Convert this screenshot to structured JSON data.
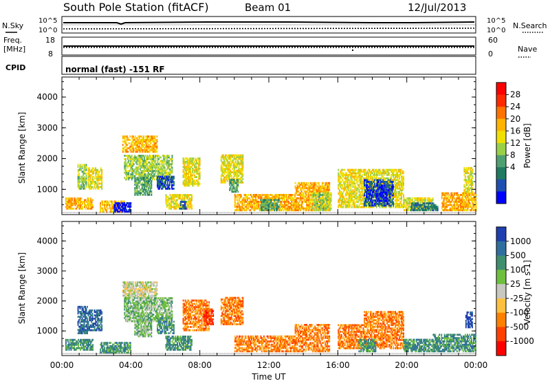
{
  "header": {
    "title": "South Pole Station (fitACF)",
    "beam": "Beam 01",
    "date": "12/Jul/2013"
  },
  "panels": {
    "nsky_label": "N.Sky",
    "nsky_ticks": [
      "10^5",
      "10^0"
    ],
    "nsearch_label": "N.Search",
    "nsearch_ticks": [
      "10^5",
      "10^0"
    ],
    "freq_label_1": "Freq.",
    "freq_label_2": "[MHz]",
    "freq_ticks": [
      "18",
      "8"
    ],
    "nave_label": "Nave",
    "nave_ticks": [
      "60",
      "0"
    ],
    "cpid_label": "CPID",
    "cpid_text": "normal (fast) -151 RF"
  },
  "chart_data": [
    {
      "type": "heatmap",
      "panel": "power",
      "ylabel": "Slant Range [km]",
      "xlabel": "",
      "x_ticks": [
        "00:00",
        "04:00",
        "08:00",
        "12:00",
        "16:00",
        "20:00",
        "00:00"
      ],
      "y_ticks": [
        1000,
        2000,
        3000,
        4000
      ],
      "xlim_hours": [
        0,
        24
      ],
      "ylim_km": [
        180,
        4650
      ],
      "colorbar_label": "Power [dB]",
      "colorbar_ticks": [
        28,
        24,
        20,
        16,
        12,
        8,
        4
      ],
      "colorbar_colors": [
        "#ff0000",
        "#ff2a00",
        "#ff7200",
        "#ffb400",
        "#f0e000",
        "#9ad048",
        "#4fa070",
        "#1f7a60",
        "#1f4fb0",
        "#0000ff"
      ],
      "patches": [
        {
          "t": [
            0.2,
            1.8
          ],
          "r": [
            350,
            700
          ],
          "level": 3
        },
        {
          "t": [
            0.9,
            1.4
          ],
          "r": [
            1000,
            1800
          ],
          "level": 5
        },
        {
          "t": [
            1.5,
            2.3
          ],
          "r": [
            1000,
            1700
          ],
          "level": 4
        },
        {
          "t": [
            2.2,
            3.6
          ],
          "r": [
            250,
            600
          ],
          "level": 3
        },
        {
          "t": [
            3.0,
            4.0
          ],
          "r": [
            250,
            550
          ],
          "level": 9
        },
        {
          "t": [
            3.5,
            5.5
          ],
          "r": [
            2200,
            2700
          ],
          "level": 3
        },
        {
          "t": [
            3.6,
            6.4
          ],
          "r": [
            1300,
            2100
          ],
          "level": 5
        },
        {
          "t": [
            4.2,
            5.2
          ],
          "r": [
            800,
            1400
          ],
          "level": 6
        },
        {
          "t": [
            5.5,
            6.5
          ],
          "r": [
            1000,
            1400
          ],
          "level": 8
        },
        {
          "t": [
            6.0,
            7.5
          ],
          "r": [
            350,
            800
          ],
          "level": 4
        },
        {
          "t": [
            6.8,
            7.2
          ],
          "r": [
            350,
            600
          ],
          "level": 8
        },
        {
          "t": [
            7.0,
            8.0
          ],
          "r": [
            1100,
            2000
          ],
          "level": 4
        },
        {
          "t": [
            9.2,
            10.5
          ],
          "r": [
            1200,
            2100
          ],
          "level": 4
        },
        {
          "t": [
            9.7,
            10.2
          ],
          "r": [
            900,
            1300
          ],
          "level": 6
        },
        {
          "t": [
            10.0,
            13.5
          ],
          "r": [
            300,
            800
          ],
          "level": 3
        },
        {
          "t": [
            11.5,
            12.6
          ],
          "r": [
            300,
            650
          ],
          "level": 6
        },
        {
          "t": [
            13.5,
            15.5
          ],
          "r": [
            300,
            1200
          ],
          "level": 3
        },
        {
          "t": [
            14.5,
            15.6
          ],
          "r": [
            300,
            900
          ],
          "level": 5
        },
        {
          "t": [
            16.0,
            19.8
          ],
          "r": [
            400,
            1650
          ],
          "level": 4
        },
        {
          "t": [
            17.5,
            19.2
          ],
          "r": [
            450,
            1300
          ],
          "level": 8
        },
        {
          "t": [
            18.2,
            18.8
          ],
          "r": [
            600,
            1100
          ],
          "level": 9
        },
        {
          "t": [
            19.8,
            21.5
          ],
          "r": [
            300,
            700
          ],
          "level": 4
        },
        {
          "t": [
            20.2,
            21.8
          ],
          "r": [
            300,
            550
          ],
          "level": 7
        },
        {
          "t": [
            22.0,
            24.0
          ],
          "r": [
            300,
            900
          ],
          "level": 3
        },
        {
          "t": [
            23.3,
            23.8
          ],
          "r": [
            900,
            1700
          ],
          "level": 4
        }
      ]
    },
    {
      "type": "heatmap",
      "panel": "velocity",
      "ylabel": "Slant Range [km]",
      "xlabel": "Time UT",
      "x_ticks": [
        "00:00",
        "04:00",
        "08:00",
        "12:00",
        "16:00",
        "20:00",
        "00:00"
      ],
      "y_ticks": [
        1000,
        2000,
        3000,
        4000
      ],
      "xlim_hours": [
        0,
        24
      ],
      "ylim_km": [
        180,
        4650
      ],
      "colorbar_label": "Velocity [m s-1]",
      "colorbar_ticks": [
        1000,
        500,
        100,
        25,
        -25,
        -100,
        -500,
        -1000
      ],
      "colorbar_colors": [
        "#1f3fb0",
        "#2f6f9f",
        "#3f8f6f",
        "#6fbf3f",
        "#c8c8c0",
        "#ffc040",
        "#ff8000",
        "#ff4000",
        "#ff0000"
      ],
      "patches": [
        {
          "t": [
            0.2,
            1.8
          ],
          "r": [
            350,
            700
          ],
          "level": 2
        },
        {
          "t": [
            0.9,
            1.5
          ],
          "r": [
            900,
            1800
          ],
          "level": 1
        },
        {
          "t": [
            1.5,
            2.3
          ],
          "r": [
            1000,
            1700
          ],
          "level": 1
        },
        {
          "t": [
            2.2,
            4.0
          ],
          "r": [
            250,
            600
          ],
          "level": 2
        },
        {
          "t": [
            3.5,
            5.5
          ],
          "r": [
            2100,
            2650
          ],
          "level": 4
        },
        {
          "t": [
            3.6,
            6.4
          ],
          "r": [
            1300,
            2100
          ],
          "level": 3
        },
        {
          "t": [
            4.2,
            5.2
          ],
          "r": [
            800,
            1400
          ],
          "level": 3
        },
        {
          "t": [
            5.5,
            6.5
          ],
          "r": [
            900,
            1400
          ],
          "level": 2
        },
        {
          "t": [
            6.0,
            7.5
          ],
          "r": [
            350,
            800
          ],
          "level": 2
        },
        {
          "t": [
            7.0,
            8.5
          ],
          "r": [
            1000,
            2000
          ],
          "level": 6
        },
        {
          "t": [
            8.2,
            8.8
          ],
          "r": [
            1200,
            1700
          ],
          "level": 7
        },
        {
          "t": [
            9.2,
            10.5
          ],
          "r": [
            1200,
            2100
          ],
          "level": 6
        },
        {
          "t": [
            10.0,
            13.5
          ],
          "r": [
            300,
            800
          ],
          "level": 6
        },
        {
          "t": [
            13.5,
            15.5
          ],
          "r": [
            300,
            1200
          ],
          "level": 6
        },
        {
          "t": [
            16.0,
            17.5
          ],
          "r": [
            400,
            1200
          ],
          "level": 6
        },
        {
          "t": [
            17.5,
            19.8
          ],
          "r": [
            400,
            1650
          ],
          "level": 6
        },
        {
          "t": [
            17.2,
            18.2
          ],
          "r": [
            300,
            700
          ],
          "level": 2
        },
        {
          "t": [
            19.8,
            21.5
          ],
          "r": [
            300,
            700
          ],
          "level": 2
        },
        {
          "t": [
            21.5,
            24.0
          ],
          "r": [
            300,
            900
          ],
          "level": 2
        },
        {
          "t": [
            23.4,
            23.8
          ],
          "r": [
            1100,
            1600
          ],
          "level": 0
        }
      ]
    }
  ]
}
